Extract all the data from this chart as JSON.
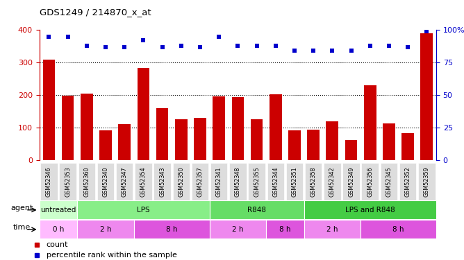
{
  "title": "GDS1249 / 214870_x_at",
  "samples": [
    "GSM52346",
    "GSM52353",
    "GSM52360",
    "GSM52340",
    "GSM52347",
    "GSM52354",
    "GSM52343",
    "GSM52350",
    "GSM52357",
    "GSM52341",
    "GSM52348",
    "GSM52355",
    "GSM52344",
    "GSM52351",
    "GSM52358",
    "GSM52342",
    "GSM52349",
    "GSM52356",
    "GSM52345",
    "GSM52352",
    "GSM52359"
  ],
  "counts": [
    308,
    197,
    205,
    90,
    110,
    283,
    160,
    125,
    129,
    195,
    194,
    125,
    202,
    90,
    93,
    118,
    62,
    230,
    113,
    83,
    390
  ],
  "percentiles": [
    95,
    95,
    88,
    87,
    87,
    92,
    87,
    88,
    87,
    95,
    88,
    88,
    88,
    84,
    84,
    84,
    84,
    88,
    88,
    87,
    99
  ],
  "bar_color": "#cc0000",
  "dot_color": "#0000cc",
  "left_axis_color": "#cc0000",
  "right_axis_color": "#0000cc",
  "ylim_left": [
    0,
    400
  ],
  "ylim_right": [
    0,
    100
  ],
  "yticks_left": [
    0,
    100,
    200,
    300,
    400
  ],
  "yticks_right": [
    0,
    25,
    50,
    75,
    100
  ],
  "yticklabels_right": [
    "0",
    "25",
    "50",
    "75",
    "100%"
  ],
  "agent_groups": [
    {
      "label": "untreated",
      "start": 0,
      "end": 2,
      "color": "#ccffcc"
    },
    {
      "label": "LPS",
      "start": 2,
      "end": 9,
      "color": "#88ee88"
    },
    {
      "label": "R848",
      "start": 9,
      "end": 14,
      "color": "#66dd66"
    },
    {
      "label": "LPS and R848",
      "start": 14,
      "end": 21,
      "color": "#44cc44"
    }
  ],
  "time_groups": [
    {
      "label": "0 h",
      "start": 0,
      "end": 2,
      "color": "#ffbbff"
    },
    {
      "label": "2 h",
      "start": 2,
      "end": 5,
      "color": "#ee88ee"
    },
    {
      "label": "8 h",
      "start": 5,
      "end": 9,
      "color": "#dd55dd"
    },
    {
      "label": "2 h",
      "start": 9,
      "end": 12,
      "color": "#ee88ee"
    },
    {
      "label": "8 h",
      "start": 12,
      "end": 14,
      "color": "#dd55dd"
    },
    {
      "label": "2 h",
      "start": 14,
      "end": 17,
      "color": "#ee88ee"
    },
    {
      "label": "8 h",
      "start": 17,
      "end": 21,
      "color": "#dd55dd"
    }
  ],
  "legend_count_label": "count",
  "legend_pct_label": "percentile rank within the sample",
  "agent_label": "agent",
  "time_label": "time",
  "tick_label_bg": "#dddddd"
}
